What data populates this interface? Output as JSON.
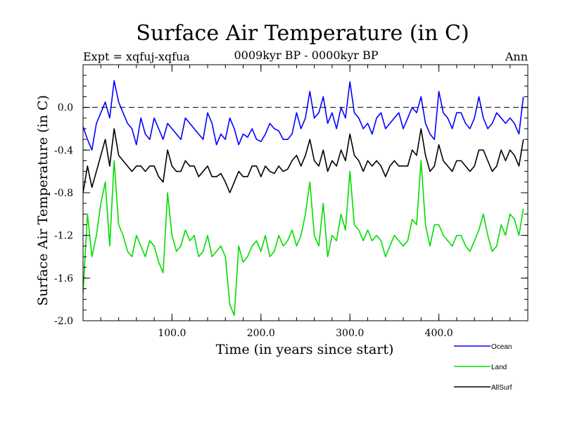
{
  "chart_data": {
    "type": "line",
    "title": "Surface Air Temperature (in C)",
    "subtitle": "0009kyr BP - 0000kyr BP",
    "left_label": "Expt = xqfuj-xqfua",
    "right_label": "Ann",
    "xlabel": "Time (in years since start)",
    "ylabel": "Surface Air Temperature (in C)",
    "xlim": [
      0,
      500
    ],
    "ylim": [
      -2.0,
      0.4
    ],
    "x_ticks": [
      100,
      200,
      300,
      400
    ],
    "x_tick_labels": [
      "100.0",
      "200.0",
      "300.0",
      "400.0"
    ],
    "y_ticks": [
      -2.0,
      -1.6,
      -1.2,
      -0.8,
      -0.4,
      0.0
    ],
    "y_tick_labels": [
      "-2.0",
      "-1.6",
      "-1.2",
      "-0.8",
      "-0.4",
      "0.0"
    ],
    "reference_line": 0.0,
    "x_step": 5,
    "legend_position": "bottom-right",
    "series": [
      {
        "name": "Ocean",
        "color": "#0000ff",
        "values": [
          -0.18,
          -0.3,
          -0.4,
          -0.15,
          -0.05,
          0.05,
          -0.1,
          0.25,
          0.05,
          -0.05,
          -0.15,
          -0.2,
          -0.35,
          -0.1,
          -0.25,
          -0.3,
          -0.1,
          -0.2,
          -0.3,
          -0.15,
          -0.2,
          -0.25,
          -0.3,
          -0.1,
          -0.15,
          -0.2,
          -0.25,
          -0.3,
          -0.05,
          -0.15,
          -0.35,
          -0.25,
          -0.3,
          -0.1,
          -0.2,
          -0.35,
          -0.25,
          -0.28,
          -0.2,
          -0.3,
          -0.32,
          -0.25,
          -0.15,
          -0.2,
          -0.22,
          -0.3,
          -0.3,
          -0.25,
          -0.05,
          -0.2,
          -0.1,
          0.15,
          -0.1,
          -0.05,
          0.1,
          -0.15,
          -0.05,
          -0.2,
          0.0,
          -0.1,
          0.24,
          -0.05,
          -0.1,
          -0.2,
          -0.15,
          -0.25,
          -0.1,
          -0.05,
          -0.2,
          -0.15,
          -0.1,
          -0.05,
          -0.2,
          -0.1,
          0.0,
          -0.05,
          0.1,
          -0.15,
          -0.25,
          -0.3,
          0.15,
          -0.05,
          -0.1,
          -0.2,
          -0.05,
          -0.05,
          -0.15,
          -0.2,
          -0.1,
          0.1,
          -0.1,
          -0.2,
          -0.15,
          -0.05,
          -0.1,
          -0.15,
          -0.1,
          -0.15,
          -0.25,
          0.1
        ]
      },
      {
        "name": "Land",
        "color": "#00dd00",
        "values": [
          -1.75,
          -1.0,
          -1.4,
          -1.2,
          -0.9,
          -0.7,
          -1.3,
          -0.5,
          -1.1,
          -1.2,
          -1.35,
          -1.4,
          -1.2,
          -1.3,
          -1.4,
          -1.25,
          -1.3,
          -1.45,
          -1.55,
          -0.8,
          -1.2,
          -1.35,
          -1.3,
          -1.15,
          -1.25,
          -1.2,
          -1.4,
          -1.35,
          -1.2,
          -1.4,
          -1.35,
          -1.3,
          -1.4,
          -1.85,
          -1.95,
          -1.3,
          -1.45,
          -1.4,
          -1.3,
          -1.25,
          -1.35,
          -1.2,
          -1.4,
          -1.35,
          -1.2,
          -1.3,
          -1.25,
          -1.15,
          -1.3,
          -1.2,
          -1.0,
          -0.7,
          -1.2,
          -1.3,
          -0.9,
          -1.4,
          -1.2,
          -1.25,
          -1.0,
          -1.15,
          -0.6,
          -1.1,
          -1.15,
          -1.25,
          -1.15,
          -1.25,
          -1.2,
          -1.25,
          -1.4,
          -1.3,
          -1.2,
          -1.25,
          -1.3,
          -1.25,
          -1.05,
          -1.1,
          -0.5,
          -1.1,
          -1.3,
          -1.1,
          -1.1,
          -1.2,
          -1.25,
          -1.3,
          -1.2,
          -1.2,
          -1.3,
          -1.35,
          -1.25,
          -1.15,
          -1.0,
          -1.2,
          -1.35,
          -1.3,
          -1.1,
          -1.2,
          -1.0,
          -1.05,
          -1.2,
          -0.95
        ]
      },
      {
        "name": "AllSurf",
        "color": "#000000",
        "values": [
          -0.8,
          -0.55,
          -0.75,
          -0.6,
          -0.45,
          -0.3,
          -0.55,
          -0.2,
          -0.45,
          -0.5,
          -0.55,
          -0.6,
          -0.55,
          -0.55,
          -0.6,
          -0.55,
          -0.55,
          -0.65,
          -0.7,
          -0.4,
          -0.55,
          -0.6,
          -0.6,
          -0.5,
          -0.55,
          -0.55,
          -0.65,
          -0.6,
          -0.55,
          -0.65,
          -0.65,
          -0.62,
          -0.7,
          -0.8,
          -0.7,
          -0.6,
          -0.65,
          -0.65,
          -0.55,
          -0.55,
          -0.65,
          -0.55,
          -0.6,
          -0.62,
          -0.55,
          -0.6,
          -0.58,
          -0.5,
          -0.45,
          -0.55,
          -0.45,
          -0.3,
          -0.5,
          -0.55,
          -0.4,
          -0.6,
          -0.5,
          -0.55,
          -0.4,
          -0.5,
          -0.25,
          -0.45,
          -0.5,
          -0.6,
          -0.5,
          -0.55,
          -0.5,
          -0.55,
          -0.65,
          -0.55,
          -0.5,
          -0.55,
          -0.55,
          -0.55,
          -0.4,
          -0.45,
          -0.2,
          -0.45,
          -0.6,
          -0.55,
          -0.35,
          -0.5,
          -0.55,
          -0.6,
          -0.5,
          -0.5,
          -0.55,
          -0.6,
          -0.55,
          -0.4,
          -0.4,
          -0.5,
          -0.6,
          -0.55,
          -0.4,
          -0.5,
          -0.4,
          -0.45,
          -0.55,
          -0.3
        ]
      }
    ]
  }
}
